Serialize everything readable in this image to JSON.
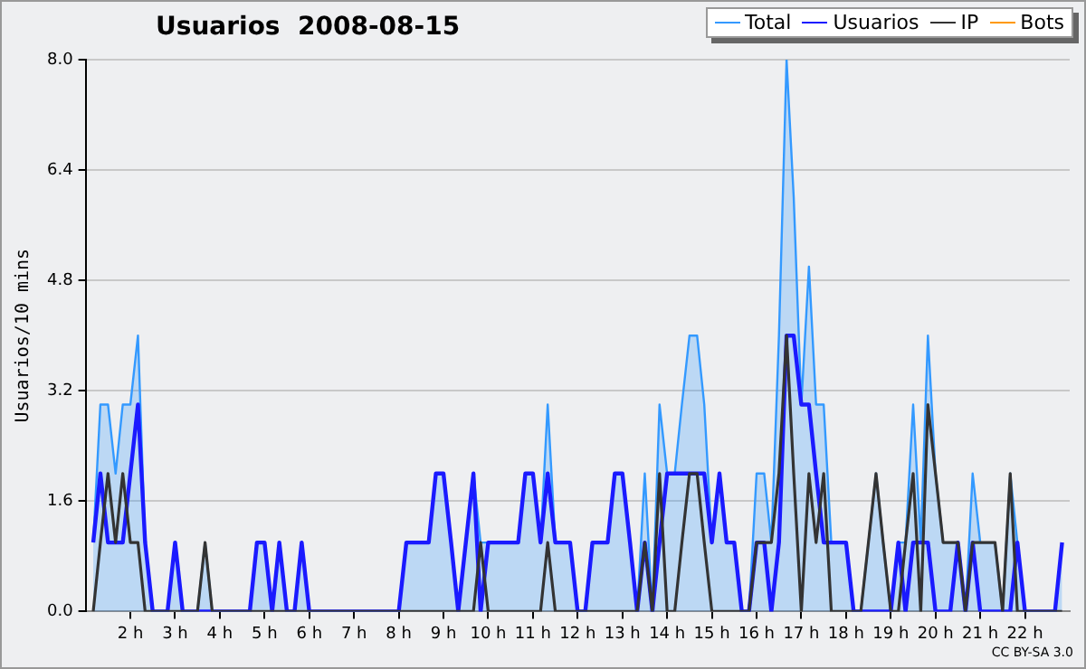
{
  "chart_data": {
    "type": "line",
    "title": "Usuarios  2008-08-15",
    "ylabel": "Usuarios/10 mins",
    "annotations": [
      "CC BY-SA 3.0"
    ],
    "x": [
      1.17,
      1.33,
      1.5,
      1.67,
      1.83,
      2,
      2.17,
      2.33,
      2.5,
      2.67,
      2.83,
      3,
      3.17,
      3.33,
      3.5,
      3.67,
      3.83,
      4,
      4.17,
      4.33,
      4.5,
      4.67,
      4.83,
      5,
      5.17,
      5.33,
      5.5,
      5.67,
      5.83,
      6,
      6.17,
      6.33,
      6.5,
      6.67,
      6.83,
      7,
      7.17,
      7.33,
      7.5,
      7.67,
      7.83,
      8,
      8.17,
      8.33,
      8.5,
      8.67,
      8.83,
      9,
      9.17,
      9.33,
      9.5,
      9.67,
      9.83,
      10,
      10.17,
      10.33,
      10.5,
      10.67,
      10.83,
      11,
      11.17,
      11.33,
      11.5,
      11.67,
      11.83,
      12,
      12.17,
      12.33,
      12.5,
      12.67,
      12.83,
      13,
      13.17,
      13.33,
      13.5,
      13.67,
      13.83,
      14,
      14.17,
      14.33,
      14.5,
      14.67,
      14.83,
      15,
      15.17,
      15.33,
      15.5,
      15.67,
      15.83,
      16,
      16.17,
      16.33,
      16.5,
      16.67,
      16.83,
      17,
      17.17,
      17.33,
      17.5,
      17.67,
      17.83,
      18,
      18.17,
      18.33,
      18.5,
      18.67,
      18.83,
      19,
      19.17,
      19.33,
      19.5,
      19.67,
      19.83,
      20,
      20.17,
      20.33,
      20.5,
      20.67,
      20.83,
      21,
      21.17,
      21.33,
      21.5,
      21.67,
      21.83,
      22,
      22.17,
      22.33,
      22.5,
      22.67,
      22.83
    ],
    "series": [
      {
        "name": "Total",
        "type": "area",
        "color": "#3399ff",
        "values": [
          1,
          3,
          3,
          2,
          3,
          3,
          4,
          1,
          0,
          0,
          0,
          1,
          0,
          0,
          0,
          1,
          0,
          0,
          0,
          0,
          0,
          0,
          1,
          1,
          0,
          1,
          0,
          0,
          1,
          0,
          0,
          0,
          0,
          0,
          0,
          0,
          0,
          0,
          0,
          0,
          0,
          0,
          1,
          1,
          1,
          1,
          2,
          2,
          1,
          0,
          1,
          2,
          1,
          1,
          1,
          1,
          1,
          1,
          2,
          2,
          1,
          3,
          1,
          1,
          1,
          0,
          0,
          1,
          1,
          1,
          2,
          2,
          1,
          0,
          2,
          0,
          3,
          2,
          2,
          3,
          4,
          4,
          3,
          1,
          2,
          1,
          1,
          0,
          0,
          2,
          2,
          1,
          4,
          8,
          6,
          3,
          5,
          3,
          3,
          1,
          1,
          1,
          0,
          0,
          1,
          2,
          1,
          0,
          1,
          1,
          3,
          1,
          4,
          2,
          1,
          1,
          1,
          0,
          2,
          1,
          1,
          1,
          0,
          2,
          1,
          0,
          0,
          0,
          0,
          0,
          1
        ]
      },
      {
        "name": "Usuarios",
        "color": "#1a1aff",
        "values": [
          1,
          2,
          1,
          1,
          1,
          2,
          3,
          1,
          0,
          0,
          0,
          1,
          0,
          0,
          0,
          0,
          0,
          0,
          0,
          0,
          0,
          0,
          1,
          1,
          0,
          1,
          0,
          0,
          1,
          0,
          0,
          0,
          0,
          0,
          0,
          0,
          0,
          0,
          0,
          0,
          0,
          0,
          1,
          1,
          1,
          1,
          2,
          2,
          1,
          0,
          1,
          2,
          0,
          1,
          1,
          1,
          1,
          1,
          2,
          2,
          1,
          2,
          1,
          1,
          1,
          0,
          0,
          1,
          1,
          1,
          2,
          2,
          1,
          0,
          1,
          0,
          1,
          2,
          2,
          2,
          2,
          2,
          2,
          1,
          2,
          1,
          1,
          0,
          0,
          1,
          1,
          0,
          1,
          4,
          4,
          3,
          3,
          2,
          1,
          1,
          1,
          1,
          0,
          0,
          0,
          0,
          0,
          0,
          1,
          0,
          1,
          1,
          1,
          0,
          0,
          0,
          1,
          0,
          1,
          0,
          0,
          0,
          0,
          0,
          1,
          0,
          0,
          0,
          0,
          0,
          1
        ]
      },
      {
        "name": "IP",
        "color": "#333333",
        "values": [
          0,
          1,
          2,
          1,
          2,
          1,
          1,
          0,
          0,
          0,
          0,
          0,
          0,
          0,
          0,
          1,
          0,
          0,
          0,
          0,
          0,
          0,
          0,
          0,
          0,
          0,
          0,
          0,
          0,
          0,
          0,
          0,
          0,
          0,
          0,
          0,
          0,
          0,
          0,
          0,
          0,
          0,
          0,
          0,
          0,
          0,
          0,
          0,
          0,
          0,
          0,
          0,
          1,
          0,
          0,
          0,
          0,
          0,
          0,
          0,
          0,
          1,
          0,
          0,
          0,
          0,
          0,
          0,
          0,
          0,
          0,
          0,
          0,
          0,
          1,
          0,
          2,
          0,
          0,
          1,
          2,
          2,
          1,
          0,
          0,
          0,
          0,
          0,
          0,
          1,
          1,
          1,
          2,
          4,
          2,
          0,
          2,
          1,
          2,
          0,
          0,
          0,
          0,
          0,
          1,
          2,
          1,
          0,
          0,
          1,
          2,
          0,
          3,
          2,
          1,
          1,
          1,
          0,
          1,
          1,
          1,
          1,
          0,
          2,
          0,
          0,
          0,
          0,
          0,
          0,
          0
        ]
      },
      {
        "name": "Bots",
        "color": "#ff9900",
        "values": [
          null,
          null,
          null,
          null,
          null,
          null,
          null,
          null,
          null,
          null,
          null,
          null,
          null,
          null,
          null,
          null,
          null,
          null,
          null,
          null,
          null,
          null,
          null,
          null,
          null,
          null,
          null,
          null,
          null,
          null,
          null,
          null,
          null,
          null,
          null,
          null,
          null,
          null,
          null,
          null,
          null,
          null,
          null,
          null,
          null,
          null,
          null,
          null,
          null,
          null,
          null,
          null,
          null,
          null,
          null,
          null,
          null,
          null,
          null,
          null,
          null,
          null,
          null,
          null,
          null,
          null,
          null,
          null,
          null,
          null,
          null,
          null,
          null,
          null,
          null,
          null,
          null,
          null,
          null,
          null,
          null,
          null,
          null,
          null,
          null,
          null,
          null,
          null,
          null,
          null,
          null,
          null,
          null,
          null,
          null,
          null,
          null,
          null,
          null,
          null,
          null,
          null,
          null,
          null,
          null,
          null,
          null,
          null,
          null,
          null,
          null,
          null,
          null,
          null,
          null,
          null,
          null,
          null,
          null,
          null,
          null,
          null,
          null,
          null,
          null,
          null,
          null,
          null,
          null,
          null,
          null
        ]
      }
    ],
    "xlim": [
      1,
      23
    ],
    "xticks": [
      {
        "value": 2,
        "label": "2 h"
      },
      {
        "value": 3,
        "label": "3 h"
      },
      {
        "value": 4,
        "label": "4 h"
      },
      {
        "value": 5,
        "label": "5 h"
      },
      {
        "value": 6,
        "label": "6 h"
      },
      {
        "value": 7,
        "label": "7 h"
      },
      {
        "value": 8,
        "label": "8 h"
      },
      {
        "value": 9,
        "label": "9 h"
      },
      {
        "value": 10,
        "label": "10 h"
      },
      {
        "value": 11,
        "label": "11 h"
      },
      {
        "value": 12,
        "label": "12 h"
      },
      {
        "value": 13,
        "label": "13 h"
      },
      {
        "value": 14,
        "label": "14 h"
      },
      {
        "value": 15,
        "label": "15 h"
      },
      {
        "value": 16,
        "label": "16 h"
      },
      {
        "value": 17,
        "label": "17 h"
      },
      {
        "value": 18,
        "label": "18 h"
      },
      {
        "value": 19,
        "label": "19 h"
      },
      {
        "value": 20,
        "label": "20 h"
      },
      {
        "value": 21,
        "label": "21 h"
      },
      {
        "value": 22,
        "label": "22 h"
      }
    ],
    "ylim": [
      0,
      8
    ],
    "yticks": [
      {
        "value": 0,
        "label": "0.0"
      },
      {
        "value": 1.6,
        "label": "1.6"
      },
      {
        "value": 3.2,
        "label": "3.2"
      },
      {
        "value": 4.8,
        "label": "4.8"
      },
      {
        "value": 6.4,
        "label": "6.4"
      },
      {
        "value": 8,
        "label": "8.0"
      }
    ],
    "grid": "y",
    "legend": "top right",
    "marker": "none",
    "line_style": "solid"
  }
}
